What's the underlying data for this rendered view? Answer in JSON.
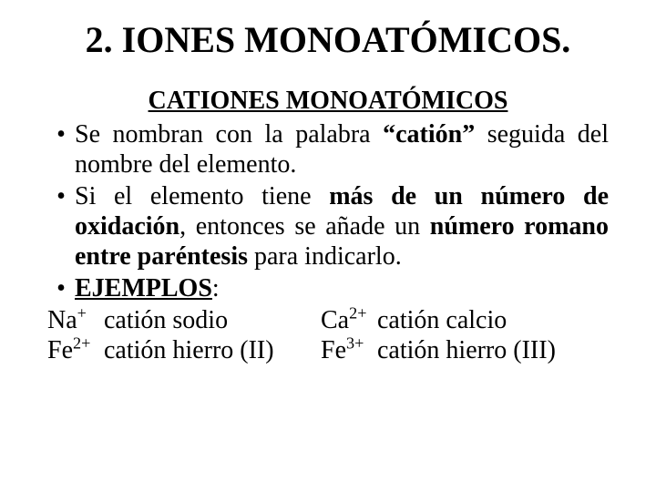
{
  "colors": {
    "background": "#ffffff",
    "text": "#000000"
  },
  "typography": {
    "font_family": "Times New Roman",
    "title_size_pt": 40,
    "subtitle_size_pt": 28,
    "body_size_pt": 28
  },
  "title": "2. IONES MONOATÓMICOS.",
  "subtitle": "CATIONES MONOATÓMICOS",
  "bullets": [
    "Se nombran con la palabra “catión” seguida del nombre del elemento.",
    "Si el elemento tiene más de un número de oxidación, entonces se añade un número romano entre paréntesis para indicarlo.",
    "EJEMPLOS:"
  ],
  "bullet1_parts": {
    "a": "Se nombran con la palabra ",
    "b": "“catión”",
    "c": " seguida del nombre del elemento."
  },
  "bullet2_parts": {
    "a": "Si el elemento tiene ",
    "b": "más de un número de oxidación",
    "c": ", entonces se añade un ",
    "d": "número romano entre paréntesis",
    "e": " para indicarlo."
  },
  "bullet3_parts": {
    "a": "EJEMPLOS",
    "b": ":"
  },
  "examples": [
    {
      "symbol_base": "Na",
      "symbol_sup": "+",
      "name": "catión sodio"
    },
    {
      "symbol_base": "Ca",
      "symbol_sup": "2+",
      "name": "catión calcio"
    },
    {
      "symbol_base": "Fe",
      "symbol_sup": "2+",
      "name": "catión hierro (II)"
    },
    {
      "symbol_base": "Fe",
      "symbol_sup": "3+",
      "name": "catión hierro (III)"
    }
  ]
}
